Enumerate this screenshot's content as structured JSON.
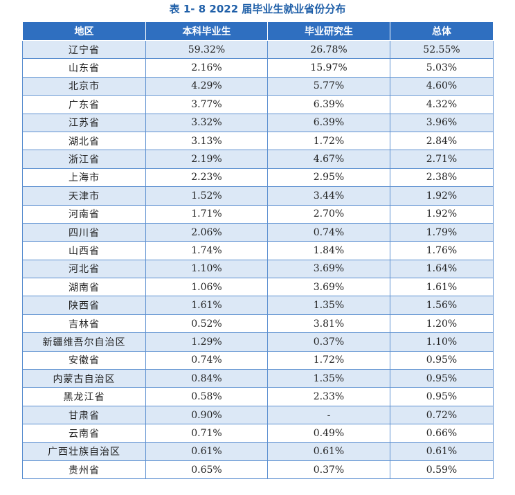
{
  "title": "表 1- 8    2022 届毕业生就业省份分布",
  "columns": [
    "地区",
    "本科毕业生",
    "毕业研究生",
    "总体"
  ],
  "rows": [
    [
      "辽宁省",
      "59.32%",
      "26.78%",
      "52.55%"
    ],
    [
      "山东省",
      "2.16%",
      "15.97%",
      "5.03%"
    ],
    [
      "北京市",
      "4.29%",
      "5.77%",
      "4.60%"
    ],
    [
      "广东省",
      "3.77%",
      "6.39%",
      "4.32%"
    ],
    [
      "江苏省",
      "3.32%",
      "6.39%",
      "3.96%"
    ],
    [
      "湖北省",
      "3.13%",
      "1.72%",
      "2.84%"
    ],
    [
      "浙江省",
      "2.19%",
      "4.67%",
      "2.71%"
    ],
    [
      "上海市",
      "2.23%",
      "2.95%",
      "2.38%"
    ],
    [
      "天津市",
      "1.52%",
      "3.44%",
      "1.92%"
    ],
    [
      "河南省",
      "1.71%",
      "2.70%",
      "1.92%"
    ],
    [
      "四川省",
      "2.06%",
      "0.74%",
      "1.79%"
    ],
    [
      "山西省",
      "1.74%",
      "1.84%",
      "1.76%"
    ],
    [
      "河北省",
      "1.10%",
      "3.69%",
      "1.64%"
    ],
    [
      "湖南省",
      "1.06%",
      "3.69%",
      "1.61%"
    ],
    [
      "陕西省",
      "1.61%",
      "1.35%",
      "1.56%"
    ],
    [
      "吉林省",
      "0.52%",
      "3.81%",
      "1.20%"
    ],
    [
      "新疆维吾尔自治区",
      "1.29%",
      "0.37%",
      "1.10%"
    ],
    [
      "安徽省",
      "0.74%",
      "1.72%",
      "0.95%"
    ],
    [
      "内蒙古自治区",
      "0.84%",
      "1.35%",
      "0.95%"
    ],
    [
      "黑龙江省",
      "0.58%",
      "2.33%",
      "0.95%"
    ],
    [
      "甘肃省",
      "0.90%",
      "-",
      "0.72%"
    ],
    [
      "云南省",
      "0.71%",
      "0.49%",
      "0.66%"
    ],
    [
      "广西壮族自治区",
      "0.61%",
      "0.61%",
      "0.61%"
    ],
    [
      "贵州省",
      "0.65%",
      "0.37%",
      "0.59%"
    ]
  ],
  "colors": {
    "header_bg": "#2f6fc0",
    "stripe_bg": "#dce8f6",
    "title_text": "#1f5fa8",
    "border": "#5b8fd0"
  }
}
